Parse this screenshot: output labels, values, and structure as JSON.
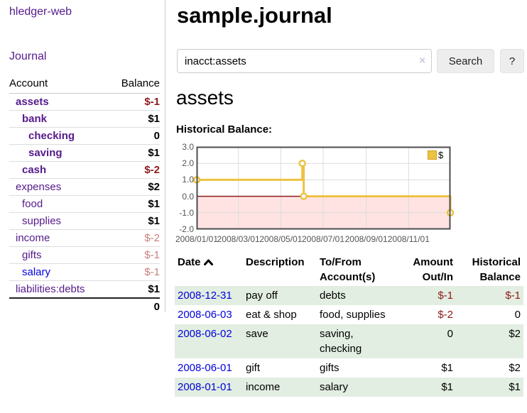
{
  "app": {
    "brand": "hledger-web"
  },
  "sidebar": {
    "journal_link": "Journal",
    "accounts_table": {
      "headers": {
        "account": "Account",
        "balance": "Balance"
      },
      "rows": [
        {
          "name": "assets",
          "balance": "$-1",
          "indent": 0,
          "selected": true,
          "balance_style": "neg-strong"
        },
        {
          "name": "bank",
          "balance": "$1",
          "indent": 1,
          "selected": true,
          "balance_style": "normal"
        },
        {
          "name": "checking",
          "balance": "0",
          "indent": 2,
          "selected": true,
          "balance_style": "normal"
        },
        {
          "name": "saving",
          "balance": "$1",
          "indent": 2,
          "selected": true,
          "balance_style": "normal"
        },
        {
          "name": "cash",
          "balance": "$-2",
          "indent": 1,
          "selected": true,
          "balance_style": "neg-strong"
        },
        {
          "name": "expenses",
          "balance": "$2",
          "indent": 0,
          "selected": false,
          "balance_style": "normal"
        },
        {
          "name": "food",
          "balance": "$1",
          "indent": 1,
          "selected": false,
          "balance_style": "normal"
        },
        {
          "name": "supplies",
          "balance": "$1",
          "indent": 1,
          "selected": false,
          "balance_style": "normal"
        },
        {
          "name": "income",
          "balance": "$-2",
          "indent": 0,
          "selected": false,
          "balance_style": "neg-soft"
        },
        {
          "name": "gifts",
          "balance": "$-1",
          "indent": 1,
          "selected": false,
          "balance_style": "neg-soft"
        },
        {
          "name": "salary",
          "balance": "$-1",
          "indent": 1,
          "selected": false,
          "balance_style": "neg-soft",
          "blue": true
        },
        {
          "name": "liabilities:debts",
          "balance": "$1",
          "indent": 0,
          "selected": false,
          "balance_style": "normal"
        }
      ],
      "total": "0"
    }
  },
  "header": {
    "title": "sample.journal"
  },
  "search": {
    "value": "inacct:assets",
    "clear_icon": "×",
    "button_label": "Search",
    "help_label": "?"
  },
  "account_page": {
    "heading": "assets",
    "chart_title": "Historical Balance:"
  },
  "chart_data": {
    "type": "line",
    "step": true,
    "title": "Historical Balance",
    "series": [
      {
        "name": "$",
        "color": "#EDC240",
        "points": [
          [
            "2008-01-01",
            1
          ],
          [
            "2008-06-01",
            2
          ],
          [
            "2008-06-03",
            0
          ],
          [
            "2008-12-31",
            -1
          ]
        ]
      }
    ],
    "x_range": [
      "2008-01-01",
      "2008-12-31"
    ],
    "ylim": [
      -2.0,
      3.0
    ],
    "y_ticks": [
      {
        "value": 3,
        "label": "3.0"
      },
      {
        "value": 2,
        "label": "2.0"
      },
      {
        "value": 1,
        "label": "1.0"
      },
      {
        "value": 0,
        "label": "0.0"
      },
      {
        "value": -1,
        "label": "-1.0"
      },
      {
        "value": -2,
        "label": "-2.0"
      }
    ],
    "x_ticks": [
      {
        "date": "2008-01-01",
        "label": "2008/01/01"
      },
      {
        "date": "2008-03-01",
        "label": "2008/03/01"
      },
      {
        "date": "2008-05-01",
        "label": "2008/05/01"
      },
      {
        "date": "2008-07-01",
        "label": "2008/07/01"
      },
      {
        "date": "2008-09-01",
        "label": "2008/09/01"
      },
      {
        "date": "2008-11-01",
        "label": "2008/11/01"
      }
    ],
    "legend": {
      "label": "$",
      "position": "top-right"
    },
    "grid": true,
    "colors": {
      "negative_region": "#FFE3E3",
      "zero_line": "#8B1A1A",
      "gridline": "#DCDCDC",
      "plot_border": "#4D4D4D",
      "axis_text": "#545454"
    }
  },
  "register_table": {
    "headers": {
      "date": "Date",
      "description": "Description",
      "accounts": "To/From Account(s)",
      "amount": "Amount Out/In",
      "balance": "Historical Balance"
    },
    "sort": {
      "column": "date",
      "direction": "ascending"
    },
    "rows": [
      {
        "date": "2008-12-31",
        "description": "pay off",
        "accounts": "debts",
        "amount": "$-1",
        "balance": "$-1"
      },
      {
        "date": "2008-06-03",
        "description": "eat & shop",
        "accounts": "food, supplies",
        "amount": "$-2",
        "balance": "0"
      },
      {
        "date": "2008-06-02",
        "description": "save",
        "accounts": "saving, checking",
        "amount": "0",
        "balance": "$2"
      },
      {
        "date": "2008-06-01",
        "description": "gift",
        "accounts": "gifts",
        "amount": "$1",
        "balance": "$2"
      },
      {
        "date": "2008-01-01",
        "description": "income",
        "accounts": "salary",
        "amount": "$1",
        "balance": "$1"
      }
    ]
  },
  "colors": {
    "link_purple": "#551A8B",
    "link_blue": "#0000DD",
    "negative_strong": "#8E1A1A",
    "negative_soft": "#C97E7E",
    "row_stripe_green": "#E2EEE1",
    "series_gold": "#EDC240"
  }
}
